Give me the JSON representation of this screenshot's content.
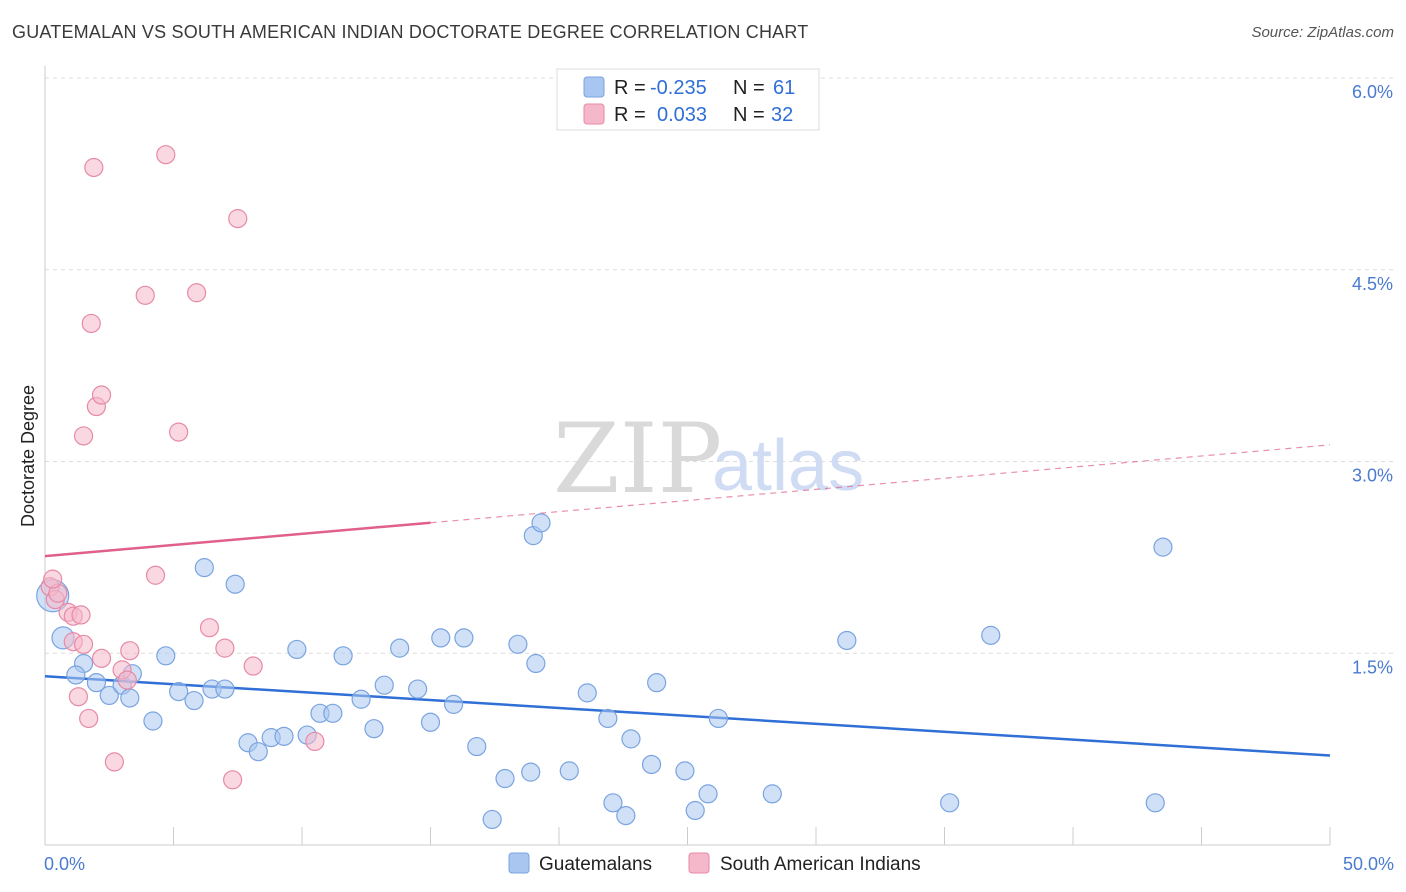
{
  "title": "GUATEMALAN VS SOUTH AMERICAN INDIAN DOCTORATE DEGREE CORRELATION CHART",
  "source": "Source: ZipAtlas.com",
  "watermark": {
    "zip": "ZIP",
    "atlas": "atlas"
  },
  "chart_data": {
    "type": "scatter",
    "title": "GUATEMALAN VS SOUTH AMERICAN INDIAN DOCTORATE DEGREE CORRELATION CHART",
    "xlabel": "",
    "ylabel": "Doctorate Degree",
    "xlim": [
      0,
      50
    ],
    "ylim": [
      0,
      6.0
    ],
    "y_ticks": [
      {
        "value": 1.5,
        "label": "1.5%"
      },
      {
        "value": 3.0,
        "label": "3.0%"
      },
      {
        "value": 4.5,
        "label": "4.5%"
      },
      {
        "value": 6.0,
        "label": "6.0%"
      }
    ],
    "x_tick_labels": {
      "min": "0.0%",
      "max": "50.0%"
    },
    "legend_box": [
      {
        "r_label": "R =",
        "r_value": "-0.235",
        "n_label": "N =",
        "n_value": "61",
        "color": "#a9c6f0"
      },
      {
        "r_label": "R =",
        "r_value": "0.033",
        "n_label": "N =",
        "n_value": "32",
        "color": "#f5b8ca"
      }
    ],
    "series": [
      {
        "name": "Guatemalans",
        "color": "#a9c6f0",
        "stroke": "#7aa4e0",
        "trend": {
          "x0": 0,
          "y0": 1.32,
          "x1": 50,
          "y1": 0.7,
          "color": "#2f6fd6",
          "dashed_from": null
        },
        "points": [
          [
            0.3,
            1.95
          ],
          [
            0.7,
            1.62
          ],
          [
            1.5,
            1.42
          ],
          [
            1.2,
            1.33
          ],
          [
            2.0,
            1.27
          ],
          [
            2.5,
            1.17
          ],
          [
            3.0,
            1.25
          ],
          [
            3.4,
            1.34
          ],
          [
            3.3,
            1.15
          ],
          [
            4.2,
            0.97
          ],
          [
            4.7,
            1.48
          ],
          [
            5.2,
            1.2
          ],
          [
            5.8,
            1.13
          ],
          [
            6.2,
            2.17
          ],
          [
            6.5,
            1.22
          ],
          [
            7.0,
            1.22
          ],
          [
            7.4,
            2.04
          ],
          [
            7.9,
            0.8
          ],
          [
            8.3,
            0.73
          ],
          [
            8.8,
            0.84
          ],
          [
            9.3,
            0.85
          ],
          [
            9.8,
            1.53
          ],
          [
            10.2,
            0.86
          ],
          [
            10.7,
            1.03
          ],
          [
            11.2,
            1.03
          ],
          [
            11.6,
            1.48
          ],
          [
            12.3,
            1.14
          ],
          [
            12.8,
            0.91
          ],
          [
            13.2,
            1.25
          ],
          [
            13.8,
            1.54
          ],
          [
            14.5,
            1.22
          ],
          [
            15.0,
            0.96
          ],
          [
            15.4,
            1.62
          ],
          [
            15.9,
            1.1
          ],
          [
            16.3,
            1.62
          ],
          [
            16.8,
            0.77
          ],
          [
            17.4,
            0.2
          ],
          [
            17.9,
            0.52
          ],
          [
            18.4,
            1.57
          ],
          [
            18.9,
            0.57
          ],
          [
            19.1,
            1.42
          ],
          [
            19.0,
            2.42
          ],
          [
            19.3,
            2.52
          ],
          [
            20.4,
            0.58
          ],
          [
            21.1,
            1.19
          ],
          [
            21.9,
            0.99
          ],
          [
            22.1,
            0.33
          ],
          [
            22.6,
            0.23
          ],
          [
            22.8,
            0.83
          ],
          [
            23.6,
            0.63
          ],
          [
            23.8,
            1.27
          ],
          [
            24.9,
            0.58
          ],
          [
            25.3,
            0.27
          ],
          [
            25.8,
            0.4
          ],
          [
            26.2,
            0.99
          ],
          [
            28.3,
            0.4
          ],
          [
            31.2,
            1.6
          ],
          [
            35.2,
            0.33
          ],
          [
            36.8,
            1.64
          ],
          [
            43.5,
            2.33
          ],
          [
            43.2,
            0.33
          ]
        ]
      },
      {
        "name": "South American Indians",
        "color": "#f5b8ca",
        "stroke": "#e68aa6",
        "trend": {
          "x0": 0,
          "y0": 2.26,
          "x1": 50,
          "y1": 3.13,
          "color": "#e0608a",
          "solid_until": 15
        },
        "points": [
          [
            0.2,
            2.02
          ],
          [
            0.4,
            1.92
          ],
          [
            0.5,
            1.97
          ],
          [
            0.9,
            1.82
          ],
          [
            1.1,
            1.79
          ],
          [
            1.1,
            1.59
          ],
          [
            1.3,
            1.16
          ],
          [
            1.5,
            1.57
          ],
          [
            1.4,
            1.8
          ],
          [
            1.7,
            0.99
          ],
          [
            2.2,
            1.46
          ],
          [
            2.7,
            0.65
          ],
          [
            3.0,
            1.37
          ],
          [
            3.2,
            1.29
          ],
          [
            3.3,
            1.52
          ],
          [
            1.5,
            3.2
          ],
          [
            2.0,
            3.43
          ],
          [
            2.2,
            3.52
          ],
          [
            1.8,
            4.08
          ],
          [
            1.9,
            5.3
          ],
          [
            3.9,
            4.3
          ],
          [
            4.3,
            2.11
          ],
          [
            4.7,
            5.4
          ],
          [
            5.2,
            3.23
          ],
          [
            5.9,
            4.32
          ],
          [
            6.4,
            1.7
          ],
          [
            7.0,
            1.54
          ],
          [
            7.3,
            0.51
          ],
          [
            7.5,
            4.9
          ],
          [
            8.1,
            1.4
          ],
          [
            10.5,
            0.81
          ],
          [
            0.3,
            2.08
          ]
        ]
      }
    ]
  },
  "bottom_legend": [
    {
      "label": "Guatemalans",
      "color": "#a9c6f0"
    },
    {
      "label": "South American Indians",
      "color": "#f5b8ca"
    }
  ]
}
